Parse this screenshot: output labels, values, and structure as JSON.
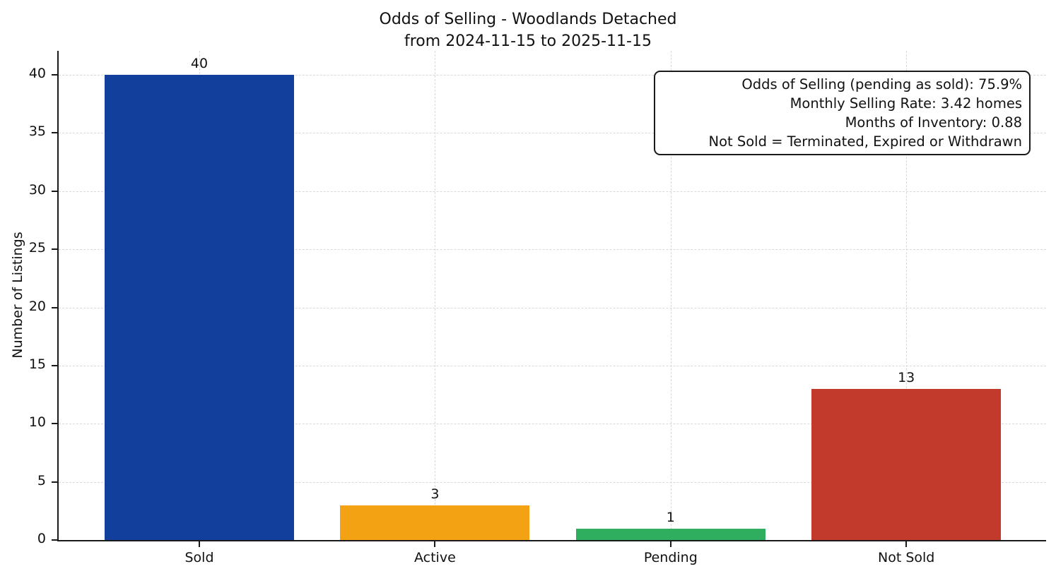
{
  "chart_data": {
    "type": "bar",
    "title": "Odds of Selling - Woodlands Detached\nfrom 2024-11-15 to 2025-11-15",
    "title_lines": [
      "Odds of Selling - Woodlands Detached",
      "from 2024-11-15 to 2025-11-15"
    ],
    "categories": [
      "Sold",
      "Active",
      "Pending",
      "Not Sold"
    ],
    "values": [
      40,
      3,
      1,
      13
    ],
    "bar_colors": [
      "#123F9B",
      "#F3A213",
      "#2EAE5E",
      "#C23A2B"
    ],
    "xlabel": "",
    "ylabel": "Number of Listings",
    "ylim": [
      0,
      42
    ],
    "yticks": [
      0,
      5,
      10,
      15,
      20,
      25,
      30,
      35,
      40
    ],
    "grid": {
      "style": "dashed",
      "axes": "both",
      "color": "#d9d9d9"
    },
    "legend": "none",
    "annotation_box": {
      "position": "top-right",
      "lines": [
        "Odds of Selling (pending as sold): 75.9%",
        "Monthly Selling Rate: 3.42 homes",
        "Months of Inventory: 0.88",
        "Not Sold = Terminated, Expired or Withdrawn"
      ]
    }
  },
  "colors": {
    "background": "#ffffff",
    "axis": "#1a1a1a",
    "grid": "#d9d9d9",
    "text": "#111111"
  }
}
